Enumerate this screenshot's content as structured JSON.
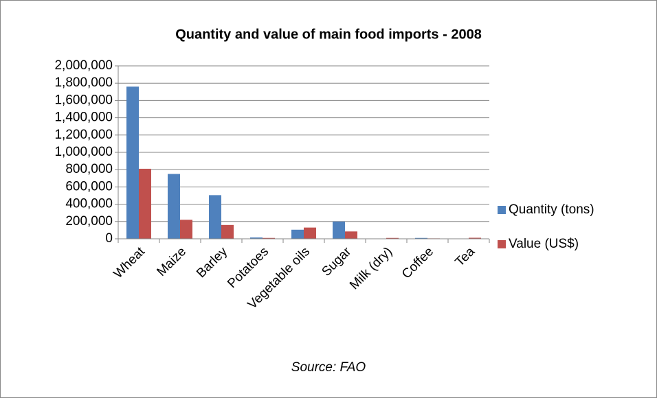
{
  "chart_data": {
    "type": "bar",
    "title": "Quantity and value of main food imports - 2008",
    "categories": [
      "Wheat",
      "Maize",
      "Barley",
      "Potatoes",
      "Vegetable oils",
      "Sugar",
      "Milk (dry)",
      "Coffee",
      "Tea"
    ],
    "series": [
      {
        "name": "Quantity (tons)",
        "color": "#4f81bd",
        "values": [
          1760000,
          750000,
          505000,
          15000,
          105000,
          200000,
          3000,
          10000,
          3000
        ]
      },
      {
        "name": "Value (US$)",
        "color": "#c0504d",
        "values": [
          810000,
          220000,
          160000,
          10000,
          130000,
          85000,
          10000,
          5000,
          12000
        ]
      }
    ],
    "ylim": [
      0,
      2000000
    ],
    "yticks": [
      0,
      {
        "value": 200000,
        "label": "200,000"
      },
      {
        "value": 400000,
        "label": "400,000"
      },
      {
        "value": 600000,
        "label": "600,000"
      },
      {
        "value": 800000,
        "label": "800,000"
      },
      {
        "value": 1000000,
        "label": "1,000,000"
      },
      {
        "value": 1200000,
        "label": "1,200,000"
      },
      {
        "value": 1400000,
        "label": "1,400,000"
      },
      {
        "value": 1600000,
        "label": "1,600,000"
      },
      {
        "value": 1800000,
        "label": "1,800,000"
      },
      {
        "value": 2000000,
        "label": "2,000,000"
      }
    ],
    "grid": true,
    "legend": "right",
    "annotation": "Source: FAO"
  }
}
